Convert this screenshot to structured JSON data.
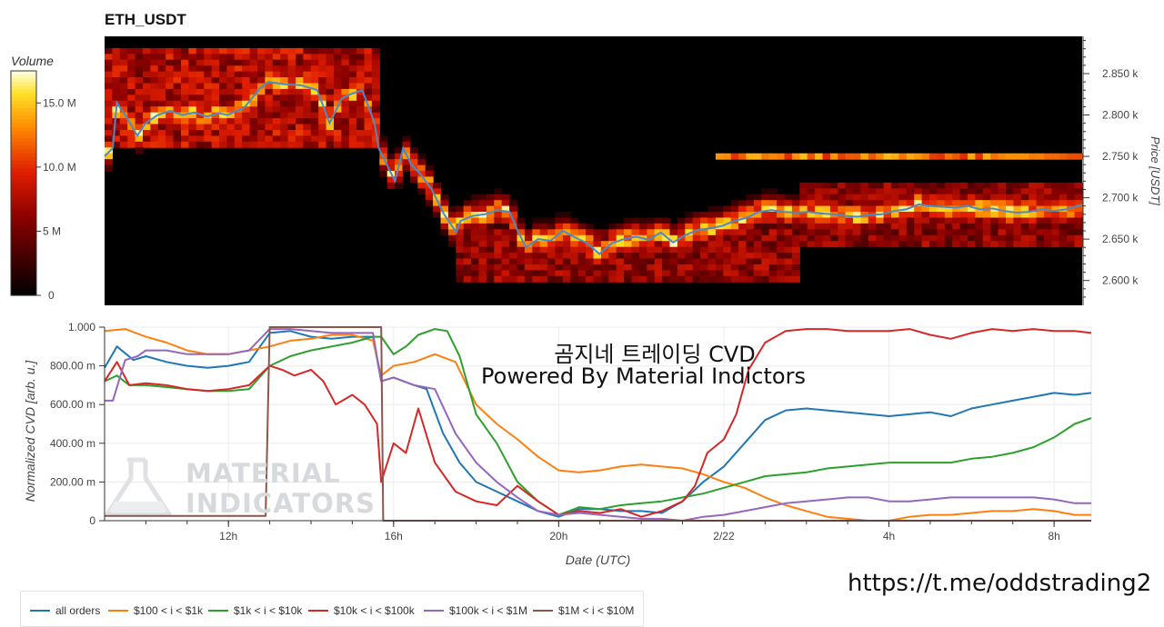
{
  "title": "ETH_USDT",
  "overlay": {
    "line1": "곰지네 트레이딩 CVD",
    "line2": "Powered By Material Indictors"
  },
  "watermark": {
    "line1": "MATERIAL",
    "line2": "INDICATORS",
    "icon": "flask-icon"
  },
  "url_text": "https://t.me/oddstrading2",
  "chart_data": [
    {
      "type": "heatmap",
      "title": "ETH_USDT",
      "colorbar": {
        "label": "Volume",
        "ticks": [
          "0",
          "5 M",
          "10.0 M",
          "15.0 M"
        ],
        "tick_values": [
          0,
          5,
          10,
          15
        ],
        "max": 17.5,
        "unit": "M"
      },
      "y_axis": {
        "label": "Price [USDT]",
        "ticks": [
          "2.600 k",
          "2.650 k",
          "2.700 k",
          "2.750 k",
          "2.800 k",
          "2.850 k"
        ],
        "tick_values": [
          2600,
          2650,
          2700,
          2750,
          2800,
          2850
        ],
        "range": [
          2570,
          2895
        ]
      },
      "x_range_hours": [
        9,
        32.9
      ],
      "price_line": {
        "color": "#4a8ac8",
        "x": [
          9,
          9.2,
          9.3,
          9.5,
          9.8,
          10.0,
          10.3,
          10.6,
          10.9,
          11.2,
          11.5,
          11.8,
          12.0,
          12.4,
          12.8,
          13.0,
          13.4,
          13.8,
          14.2,
          14.5,
          14.8,
          15.0,
          15.3,
          15.6,
          15.7,
          15.9,
          16.1,
          16.3,
          16.5,
          16.7,
          17.0,
          17.3,
          17.6,
          17.7,
          18.0,
          18.3,
          18.6,
          18.9,
          19.1,
          19.3,
          19.6,
          19.9,
          20.2,
          20.5,
          20.8,
          21.1,
          21.4,
          21.7,
          22.0,
          22.3,
          22.6,
          22.9,
          23.2,
          23.5,
          23.8,
          24.1,
          24.4,
          24.7,
          25.0,
          25.3,
          25.6,
          25.9,
          26.2,
          26.5,
          26.8,
          27.1,
          27.4,
          27.7,
          28.0,
          28.3,
          28.6,
          28.9,
          29.2,
          29.5,
          29.8,
          30.1,
          30.4,
          30.7,
          31.0,
          31.3,
          31.6,
          31.9,
          32.2,
          32.5,
          32.9
        ],
        "y": [
          2750,
          2760,
          2815,
          2800,
          2775,
          2790,
          2800,
          2805,
          2800,
          2803,
          2798,
          2802,
          2800,
          2808,
          2832,
          2840,
          2837,
          2836,
          2830,
          2790,
          2820,
          2825,
          2830,
          2790,
          2760,
          2740,
          2720,
          2760,
          2740,
          2730,
          2710,
          2680,
          2658,
          2672,
          2678,
          2680,
          2685,
          2683,
          2660,
          2640,
          2650,
          2648,
          2660,
          2652,
          2645,
          2632,
          2645,
          2650,
          2653,
          2649,
          2658,
          2646,
          2655,
          2661,
          2663,
          2666,
          2672,
          2676,
          2683,
          2685,
          2683,
          2682,
          2683,
          2681,
          2680,
          2678,
          2677,
          2679,
          2680,
          2684,
          2686,
          2692,
          2690,
          2689,
          2688,
          2690,
          2686,
          2687,
          2684,
          2682,
          2683,
          2686,
          2684,
          2686,
          2692
        ]
      }
    },
    {
      "type": "line",
      "xlabel": "Date (UTC)",
      "ylabel": "Normalized CVD [arb. u.]",
      "ylim": [
        0,
        1
      ],
      "xlim_hours": [
        9,
        32.9
      ],
      "x_ticks": [
        "12h",
        "16h",
        "20h",
        "2/22",
        "4h",
        "8h"
      ],
      "x_tick_values": [
        12,
        16,
        20,
        24,
        28,
        32
      ],
      "y_ticks": [
        "0",
        "200.00 m",
        "400.00 m",
        "600.00 m",
        "800.00 m",
        "1.000"
      ],
      "y_tick_values": [
        0,
        0.2,
        0.4,
        0.6,
        0.8,
        1.0
      ],
      "grid": true,
      "legend_position": "bottom",
      "series": [
        {
          "name": "all orders",
          "color": "#1f77b4",
          "x": [
            9,
            9.3,
            9.7,
            10,
            10.5,
            11,
            11.5,
            12,
            12.5,
            13,
            13.5,
            14,
            14.5,
            15,
            15.5,
            15.7,
            16,
            16.5,
            16.8,
            17.2,
            17.6,
            18,
            18.5,
            19,
            19.5,
            20,
            20.5,
            21,
            21.5,
            22,
            22.5,
            23,
            23.5,
            24,
            24.5,
            25,
            25.5,
            26,
            26.5,
            27,
            27.5,
            28,
            28.5,
            29,
            29.5,
            30,
            30.5,
            31,
            31.5,
            32,
            32.5,
            32.9
          ],
          "y": [
            0.79,
            0.9,
            0.83,
            0.85,
            0.82,
            0.8,
            0.79,
            0.8,
            0.82,
            0.97,
            0.98,
            0.95,
            0.94,
            0.95,
            0.95,
            0.72,
            0.74,
            0.7,
            0.68,
            0.45,
            0.3,
            0.2,
            0.15,
            0.1,
            0.05,
            0.02,
            0.06,
            0.06,
            0.05,
            0.05,
            0.04,
            0.1,
            0.2,
            0.28,
            0.4,
            0.52,
            0.57,
            0.58,
            0.57,
            0.56,
            0.55,
            0.54,
            0.55,
            0.56,
            0.54,
            0.58,
            0.6,
            0.62,
            0.64,
            0.66,
            0.65,
            0.66
          ]
        },
        {
          "name": "$100 < i < $1k",
          "color": "#ff7f0e",
          "x": [
            9,
            9.5,
            10,
            10.5,
            11,
            11.5,
            12,
            12.5,
            13,
            13.5,
            14,
            14.5,
            15,
            15.5,
            15.7,
            16,
            16.5,
            17,
            17.5,
            18,
            18.5,
            19,
            19.5,
            20,
            20.5,
            21,
            21.5,
            22,
            22.5,
            23,
            23.5,
            24,
            24.5,
            25,
            25.5,
            26,
            26.5,
            27,
            27.5,
            28,
            28.5,
            29,
            29.5,
            30,
            30.5,
            31,
            31.5,
            32,
            32.5,
            32.9
          ],
          "y": [
            0.98,
            0.99,
            0.95,
            0.92,
            0.88,
            0.86,
            0.86,
            0.88,
            0.9,
            0.93,
            0.94,
            0.96,
            0.96,
            0.93,
            0.75,
            0.8,
            0.82,
            0.86,
            0.82,
            0.6,
            0.5,
            0.42,
            0.33,
            0.26,
            0.25,
            0.26,
            0.28,
            0.29,
            0.28,
            0.27,
            0.24,
            0.2,
            0.17,
            0.12,
            0.08,
            0.05,
            0.02,
            0.01,
            0.0,
            0.0,
            0.02,
            0.03,
            0.03,
            0.04,
            0.05,
            0.05,
            0.06,
            0.05,
            0.03,
            0.03
          ]
        },
        {
          "name": "$1k < i < $10k",
          "color": "#2ca02c",
          "x": [
            9,
            9.3,
            9.6,
            10,
            10.5,
            11,
            11.5,
            12,
            12.5,
            13,
            13.5,
            14,
            14.5,
            15,
            15.5,
            15.7,
            16,
            16.3,
            16.6,
            17,
            17.3,
            17.6,
            18,
            18.5,
            19,
            19.5,
            20,
            20.5,
            21,
            21.5,
            22,
            22.5,
            23,
            23.5,
            24,
            24.5,
            25,
            25.5,
            26,
            26.5,
            27,
            27.5,
            28,
            28.5,
            29,
            29.5,
            30,
            30.5,
            31,
            31.5,
            32,
            32.5,
            32.9
          ],
          "y": [
            0.72,
            0.75,
            0.7,
            0.7,
            0.69,
            0.68,
            0.67,
            0.67,
            0.68,
            0.8,
            0.85,
            0.88,
            0.9,
            0.92,
            0.95,
            0.95,
            0.86,
            0.9,
            0.96,
            0.99,
            0.98,
            0.85,
            0.55,
            0.4,
            0.2,
            0.1,
            0.03,
            0.07,
            0.06,
            0.08,
            0.09,
            0.1,
            0.12,
            0.14,
            0.17,
            0.2,
            0.23,
            0.24,
            0.25,
            0.27,
            0.28,
            0.29,
            0.3,
            0.3,
            0.3,
            0.3,
            0.32,
            0.33,
            0.35,
            0.38,
            0.43,
            0.5,
            0.53
          ]
        },
        {
          "name": "$10k < i < $100k",
          "color": "#d62728",
          "x": [
            9,
            9.3,
            9.6,
            10,
            10.5,
            11,
            11.5,
            12,
            12.5,
            13,
            13.3,
            13.6,
            14,
            14.3,
            14.6,
            15,
            15.3,
            15.6,
            15.7,
            16,
            16.3,
            16.6,
            17,
            17.5,
            18,
            18.5,
            19,
            19.5,
            20,
            20.5,
            21,
            21.5,
            22,
            22.5,
            23,
            23.3,
            23.6,
            24,
            24.3,
            24.6,
            25,
            25.5,
            26,
            26.5,
            27,
            27.5,
            28,
            28.5,
            29,
            29.5,
            30,
            30.5,
            31,
            31.5,
            32,
            32.5,
            32.9
          ],
          "y": [
            0.72,
            0.82,
            0.7,
            0.71,
            0.7,
            0.68,
            0.67,
            0.68,
            0.7,
            0.8,
            0.78,
            0.75,
            0.78,
            0.72,
            0.6,
            0.65,
            0.6,
            0.5,
            0.2,
            0.4,
            0.35,
            0.58,
            0.3,
            0.15,
            0.1,
            0.08,
            0.18,
            0.1,
            0.03,
            0.05,
            0.04,
            0.06,
            0.02,
            0.05,
            0.1,
            0.18,
            0.35,
            0.42,
            0.55,
            0.78,
            0.92,
            0.98,
            0.99,
            0.99,
            0.98,
            0.98,
            0.98,
            0.99,
            0.96,
            0.94,
            0.97,
            0.99,
            0.98,
            0.99,
            0.98,
            0.98,
            0.97
          ]
        },
        {
          "name": "$100k < i < $1M",
          "color": "#9467bd",
          "x": [
            9,
            9.2,
            9.5,
            9.8,
            10,
            10.5,
            11,
            11.5,
            12,
            12.5,
            13,
            13.5,
            14,
            14.5,
            15,
            15.5,
            15.7,
            16,
            16.5,
            17,
            17.5,
            18,
            18.5,
            19,
            19.5,
            20,
            20.5,
            21,
            21.5,
            22,
            22.5,
            23,
            23.5,
            24,
            24.5,
            25,
            25.5,
            26,
            26.5,
            27,
            27.5,
            28,
            28.5,
            29,
            29.5,
            30,
            30.5,
            31,
            31.5,
            32,
            32.5,
            32.9
          ],
          "y": [
            0.62,
            0.62,
            0.83,
            0.85,
            0.88,
            0.88,
            0.86,
            0.86,
            0.86,
            0.88,
            0.99,
            0.99,
            0.98,
            0.97,
            0.97,
            0.97,
            0.72,
            0.74,
            0.7,
            0.68,
            0.45,
            0.3,
            0.2,
            0.12,
            0.05,
            0.03,
            0.04,
            0.03,
            0.02,
            0.01,
            0.01,
            0.0,
            0.02,
            0.03,
            0.05,
            0.07,
            0.09,
            0.1,
            0.11,
            0.12,
            0.12,
            0.1,
            0.1,
            0.11,
            0.12,
            0.12,
            0.12,
            0.12,
            0.12,
            0.11,
            0.09,
            0.09
          ]
        },
        {
          "name": "$1M < i < $10M",
          "color": "#8c564b",
          "x": [
            9,
            12.9,
            13.0,
            15.0,
            15.7,
            15.75,
            32.9
          ],
          "y": [
            0.025,
            0.025,
            1.0,
            1.0,
            1.0,
            0.0,
            0.0
          ]
        }
      ]
    }
  ]
}
